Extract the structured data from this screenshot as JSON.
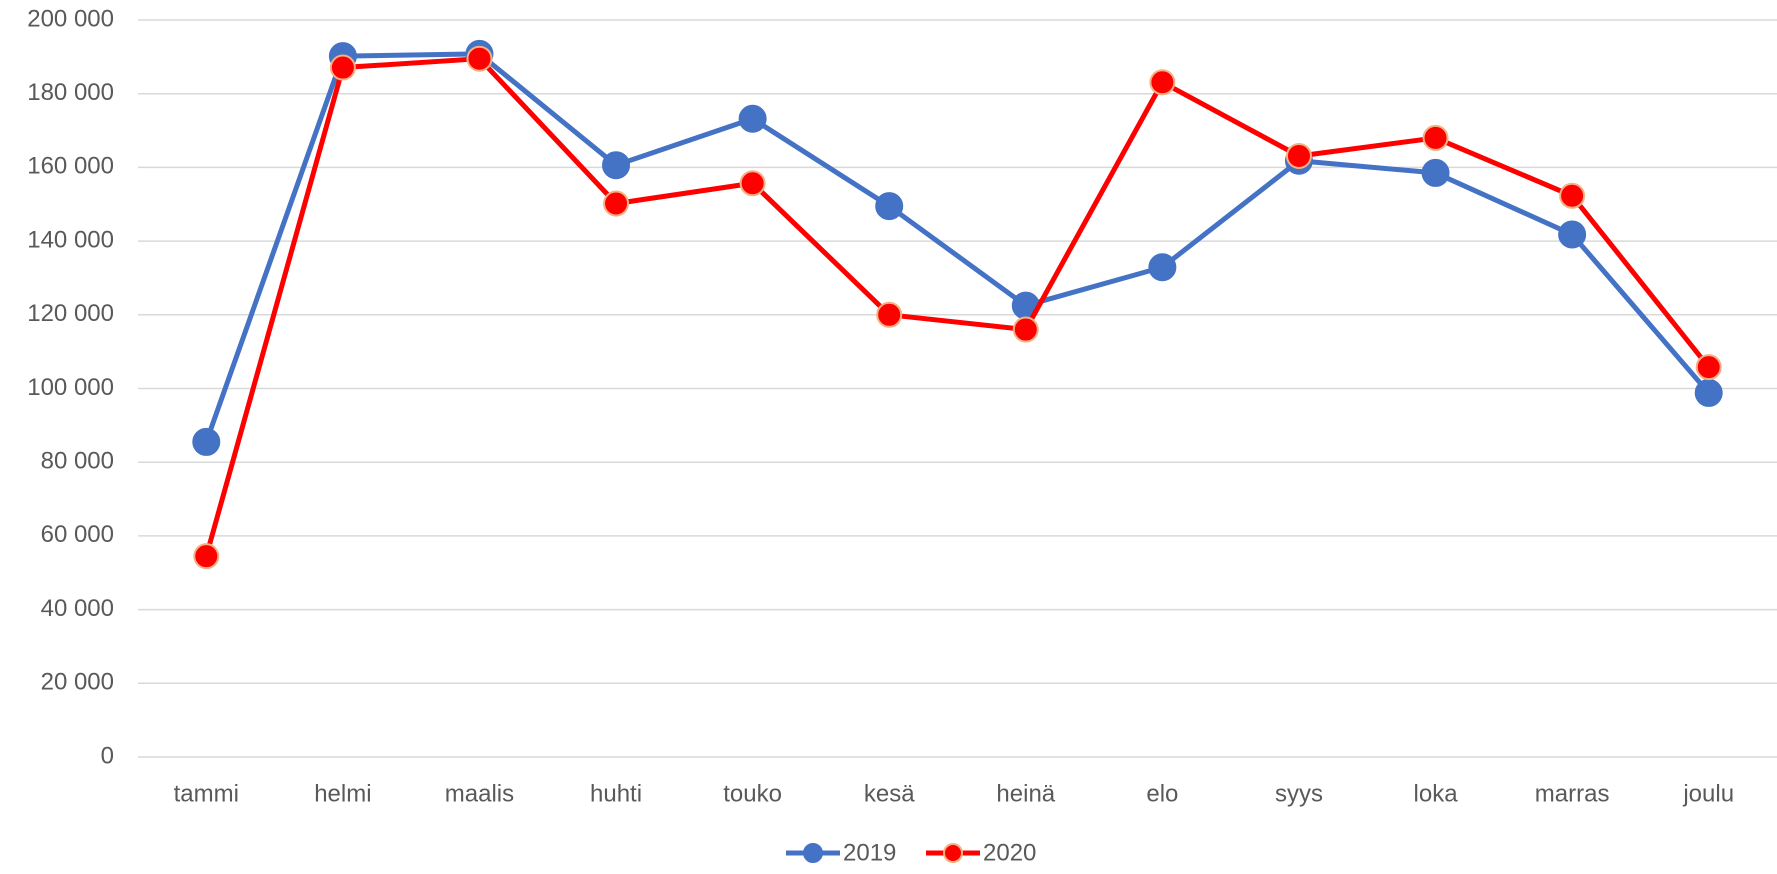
{
  "chart_data": {
    "type": "line",
    "categories": [
      "tammi",
      "helmi",
      "maalis",
      "huhti",
      "touko",
      "kesä",
      "heinä",
      "elo",
      "syys",
      "loka",
      "marras",
      "joulu"
    ],
    "series": [
      {
        "name": "2019",
        "color": "#4472c4",
        "values": [
          85500,
          190200,
          190800,
          160600,
          173200,
          149500,
          122500,
          132900,
          161800,
          158500,
          141800,
          98800
        ]
      },
      {
        "name": "2020",
        "color": "#ff0000",
        "values": [
          54500,
          187100,
          189500,
          150200,
          155700,
          120000,
          116000,
          183100,
          163100,
          168000,
          152300,
          105800
        ]
      }
    ],
    "ylim": [
      0,
      200000
    ],
    "yticks": [
      0,
      {
        "value": 20000,
        "label": "20 000"
      },
      {
        "value": 40000,
        "label": "40 000"
      },
      {
        "value": 60000,
        "label": "60 000"
      },
      {
        "value": 80000,
        "label": "80 000"
      },
      {
        "value": 100000,
        "label": "100 000"
      },
      {
        "value": 120000,
        "label": "120 000"
      },
      {
        "value": 140000,
        "label": "140 000"
      },
      {
        "value": 160000,
        "label": "160 000"
      },
      {
        "value": 180000,
        "label": "180 000"
      },
      {
        "value": 200000,
        "label": "200 000"
      }
    ],
    "grid": true,
    "legend": "bottom"
  }
}
